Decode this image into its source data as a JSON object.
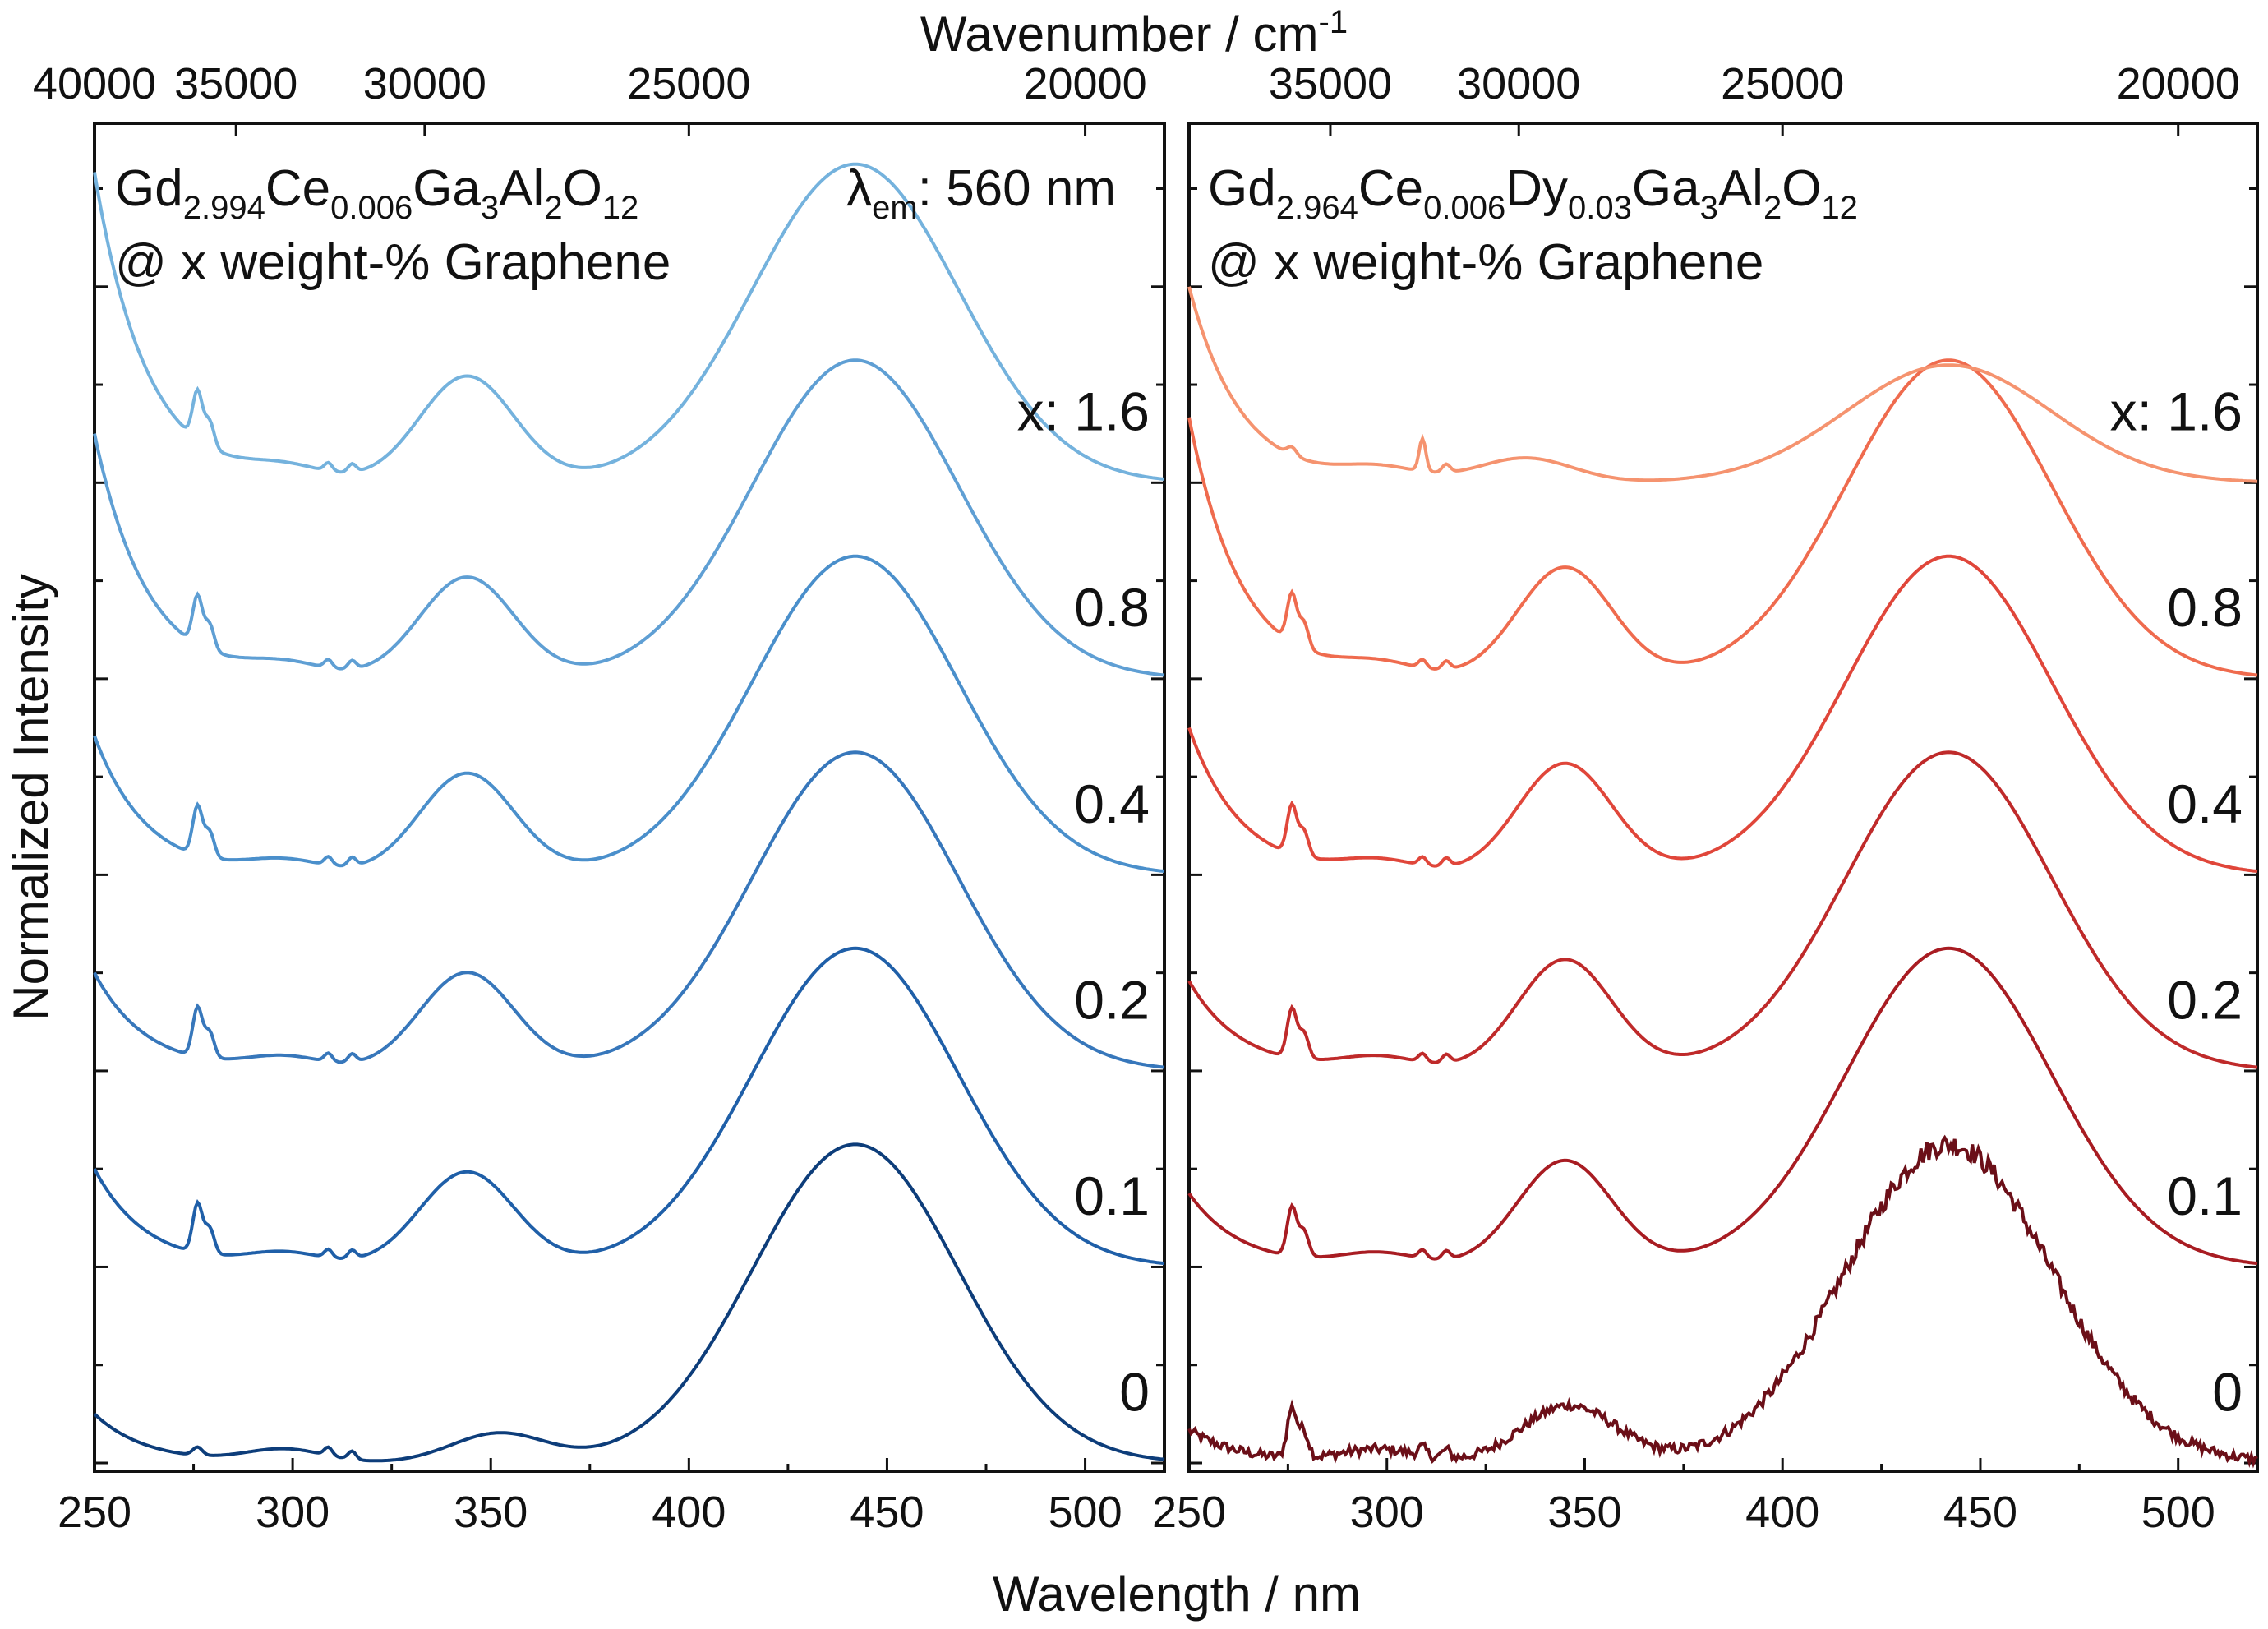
{
  "chart_data": [
    {
      "type": "line",
      "panel": "left",
      "title_line1": [
        "Gd",
        "2.994",
        "Ce",
        "0.006",
        "Ga",
        "3",
        "Al",
        "2",
        "O",
        "12"
      ],
      "title_line2": "@ x weight-% Graphene",
      "annotation_em": {
        "symbol": "λ",
        "sub": "em",
        "text": ": 560 nm"
      },
      "xlabel": "Wavelength / nm",
      "x2label_main": "Wavenumber / cm",
      "x2label_sup": "-1",
      "ylabel": "Normalized Intensity",
      "xlim": [
        250,
        520
      ],
      "xticks": [
        "250",
        "300",
        "350",
        "400",
        "450",
        "500"
      ],
      "x2ticks": [
        "40000",
        "35000",
        "30000",
        "25000",
        "20000"
      ],
      "ylim": [
        0,
        8.2
      ],
      "series": [
        {
          "name": "0",
          "label": "0",
          "offset": 0,
          "color": "#0d3d7a",
          "peak1_x": 352,
          "peak1_h": 0.18,
          "peak2_h": 1.95,
          "uv_h": 0.3,
          "noisy": false
        },
        {
          "name": "0.1",
          "label": "0.1",
          "offset": 1.2,
          "color": "#1f5fa8",
          "peak1_x": 344,
          "peak1_h": 0.58,
          "peak2_h": 1.95,
          "uv_h": 0.6,
          "noisy": false
        },
        {
          "name": "0.2",
          "label": "0.2",
          "offset": 2.4,
          "color": "#3777bb",
          "peak1_x": 344,
          "peak1_h": 0.6,
          "peak2_h": 1.95,
          "uv_h": 0.6,
          "noisy": false
        },
        {
          "name": "0.4",
          "label": "0.4",
          "offset": 3.6,
          "color": "#4a8fcb",
          "peak1_x": 344,
          "peak1_h": 0.62,
          "peak2_h": 1.95,
          "uv_h": 0.85,
          "noisy": false
        },
        {
          "name": "0.8",
          "label": "0.8",
          "offset": 4.8,
          "color": "#5f9fd4",
          "peak1_x": 344,
          "peak1_h": 0.62,
          "peak2_h": 1.95,
          "uv_h": 1.5,
          "noisy": false
        },
        {
          "name": "1.6",
          "label": "x: 1.6",
          "offset": 6.0,
          "color": "#74b2dd",
          "peak1_x": 344,
          "peak1_h": 0.65,
          "peak2_h": 1.95,
          "uv_h": 1.9,
          "noisy": false
        }
      ]
    },
    {
      "type": "line",
      "panel": "right",
      "title_line1": [
        "Gd",
        "2.964",
        "Ce",
        "0.006",
        "Dy",
        "0.03",
        "Ga",
        "3",
        "Al",
        "2",
        "O",
        "12"
      ],
      "title_line2": "@ x weight-% Graphene",
      "xlabel": "Wavelength / nm",
      "xlim": [
        250,
        520
      ],
      "xticks": [
        "250",
        "300",
        "350",
        "400",
        "450",
        "500"
      ],
      "x2ticks": [
        "35000",
        "30000",
        "25000",
        "20000"
      ],
      "ylim": [
        0,
        8.2
      ],
      "series": [
        {
          "name": "0",
          "label": "0",
          "offset": 0,
          "color": "#6b0f18",
          "peak1_x": 346,
          "peak1_h": 0.35,
          "peak2_h": 1.95,
          "uv_h": 0.2,
          "noisy": true
        },
        {
          "name": "0.1",
          "label": "0.1",
          "offset": 1.2,
          "color": "#a81c22",
          "peak1_x": 345,
          "peak1_h": 0.65,
          "peak2_h": 1.95,
          "uv_h": 0.45,
          "noisy": false
        },
        {
          "name": "0.2",
          "label": "0.2",
          "offset": 2.4,
          "color": "#bf2a2a",
          "peak1_x": 345,
          "peak1_h": 0.68,
          "peak2_h": 1.95,
          "uv_h": 0.55,
          "noisy": false
        },
        {
          "name": "0.4",
          "label": "0.4",
          "offset": 3.6,
          "color": "#e0463a",
          "peak1_x": 345,
          "peak1_h": 0.68,
          "peak2_h": 1.95,
          "uv_h": 0.9,
          "noisy": false
        },
        {
          "name": "0.8",
          "label": "0.8",
          "offset": 4.8,
          "color": "#ef6b4e",
          "peak1_x": 345,
          "peak1_h": 0.68,
          "peak2_h": 1.95,
          "uv_h": 1.6,
          "noisy": false
        },
        {
          "name": "1.6",
          "label": "x: 1.6",
          "offset": 6.0,
          "color": "#f5936f",
          "peak1_x": 335,
          "peak1_h": 0.15,
          "peak2_h": 0.72,
          "uv_h": 1.2,
          "noisy": false
        }
      ]
    }
  ]
}
